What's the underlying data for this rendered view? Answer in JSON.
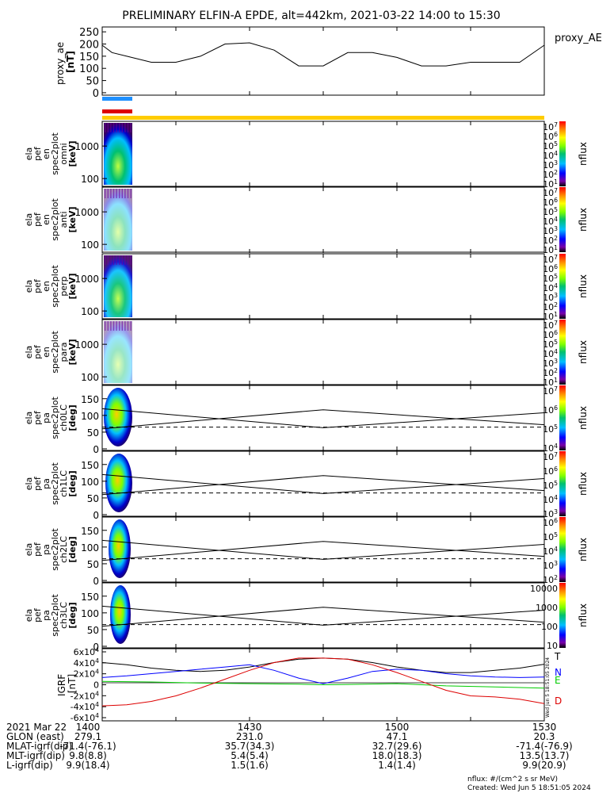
{
  "title": "PRELIMINARY ELFIN-A EPDE, alt=442km, 2021-03-22 14:00 to 15:30",
  "proxy_ae": {
    "ylabel": [
      "proxy_ae",
      "[nT]"
    ],
    "legend": "proxy_AE",
    "ticks": [
      "250",
      "200",
      "150",
      "100",
      "50",
      "0"
    ]
  },
  "spec_panels": [
    {
      "ylabel": [
        "ela",
        "pef",
        "en",
        "spec2plot",
        "omni",
        "[keV]"
      ],
      "yticks": [
        "1000",
        "100"
      ],
      "cb_label": "nflux",
      "cb_ticks": [
        "10^7",
        "10^6",
        "10^5",
        "10^4",
        "10^3",
        "10^2",
        "10^1"
      ]
    },
    {
      "ylabel": [
        "ela",
        "pef",
        "en",
        "spec2plot",
        "anti",
        "[keV]"
      ],
      "yticks": [
        "1000",
        "100"
      ],
      "cb_label": "nflux",
      "cb_ticks": [
        "10^7",
        "10^6",
        "10^5",
        "10^4",
        "10^3",
        "10^2",
        "10^1"
      ]
    },
    {
      "ylabel": [
        "ela",
        "pef",
        "en",
        "spec2plot",
        "perp",
        "[keV]"
      ],
      "yticks": [
        "1000",
        "100"
      ],
      "cb_label": "nflux",
      "cb_ticks": [
        "10^7",
        "10^6",
        "10^5",
        "10^4",
        "10^3",
        "10^2",
        "10^1"
      ]
    },
    {
      "ylabel": [
        "ela",
        "pef",
        "en",
        "spec2plot",
        "para",
        "[keV]"
      ],
      "yticks": [
        "1000",
        "100"
      ],
      "cb_label": "nflux",
      "cb_ticks": [
        "10^7",
        "10^6",
        "10^5",
        "10^4",
        "10^3",
        "10^2",
        "10^1"
      ]
    }
  ],
  "pa_panels": [
    {
      "ylabel": [
        "ela",
        "pef",
        "pa",
        "spec2plot",
        "ch0LC",
        "[deg]"
      ],
      "yticks": [
        "150",
        "100",
        "50",
        "0"
      ],
      "cb_label": "nflux",
      "cb_ticks": [
        "10^7",
        "10^6",
        "10^5",
        "10^4"
      ]
    },
    {
      "ylabel": [
        "ela",
        "pef",
        "pa",
        "spec2plot",
        "ch1LC",
        "[deg]"
      ],
      "yticks": [
        "150",
        "100",
        "50",
        "0"
      ],
      "cb_label": "nflux",
      "cb_ticks": [
        "10^7",
        "10^6",
        "10^5",
        "10^4",
        "10^3"
      ]
    },
    {
      "ylabel": [
        "ela",
        "pef",
        "pa",
        "spec2plot",
        "ch2LC",
        "[deg]"
      ],
      "yticks": [
        "150",
        "100",
        "50",
        "0"
      ],
      "cb_label": "nflux",
      "cb_ticks": [
        "10^6",
        "10^5",
        "10^4",
        "10^3",
        "10^2"
      ]
    },
    {
      "ylabel": [
        "ela",
        "pef",
        "pa",
        "spec2plot",
        "ch3LC",
        "[deg]"
      ],
      "yticks": [
        "150",
        "100",
        "50",
        "0"
      ],
      "cb_label": "nflux",
      "cb_ticks": [
        "10000",
        "1000",
        "100",
        "10"
      ]
    }
  ],
  "igrf": {
    "ylabel": [
      "IGRF",
      "[nT]"
    ],
    "ticks": [
      "6x10^4",
      "4x10^4",
      "2x10^4",
      "0",
      "-2x10^4",
      "-4x10^4",
      "-6x10^4"
    ],
    "legend": [
      {
        "label": "T",
        "color": "#000000"
      },
      {
        "label": "N",
        "color": "#0000ff"
      },
      {
        "label": "E",
        "color": "#00cc00"
      },
      {
        "label": "D",
        "color": "#dd0000"
      }
    ],
    "side_text": "Wed Jun  5 18:51:05 2024"
  },
  "footer": {
    "rows": [
      {
        "label": "2021 Mar 22",
        "values": [
          "1400",
          "1430",
          "1500",
          "1530"
        ]
      },
      {
        "label": "GLON (east)",
        "values": [
          "279.1",
          "231.0",
          "47.1",
          "20.3"
        ]
      },
      {
        "label": "MLAT-igrf(dip)",
        "values": [
          "-71.4(-76.1)",
          "35.7(34.3)",
          "32.7(29.6)",
          "-71.4(-76.9)"
        ]
      },
      {
        "label": "MLT-igrf(dip)",
        "values": [
          "9.8(8.8)",
          "5.4(5.4)",
          "18.0(18.3)",
          "13.5(13.7)"
        ]
      },
      {
        "label": "L-igrf(dip)",
        "values": [
          "9.9(18.4)",
          "1.5(1.6)",
          "1.4(1.4)",
          "9.9(20.9)"
        ]
      }
    ],
    "units_note": "nflux: #/(cm^2 s sr MeV)",
    "created": "Created: Wed Jun  5 18:51:05 2024"
  },
  "chart_data": {
    "type": "line",
    "x_range": [
      "14:00",
      "15:30"
    ],
    "x_ticks": [
      "1400",
      "1430",
      "1500",
      "1530"
    ],
    "series": [
      {
        "name": "proxy_AE",
        "x_minutes": [
          0,
          2,
          5,
          10,
          15,
          20,
          25,
          30,
          35,
          40,
          45,
          50,
          55,
          60,
          65,
          70,
          75,
          80,
          85,
          90
        ],
        "values": [
          195,
          165,
          150,
          125,
          125,
          150,
          200,
          205,
          175,
          110,
          110,
          165,
          165,
          145,
          110,
          110,
          125,
          125,
          125,
          195
        ]
      },
      {
        "name": "T",
        "x_minutes": [
          0,
          5,
          10,
          15,
          20,
          25,
          30,
          35,
          40,
          45,
          50,
          55,
          60,
          65,
          70,
          75,
          80,
          85,
          90
        ],
        "values": [
          40000,
          36000,
          30000,
          26000,
          24000,
          26000,
          32000,
          40000,
          46000,
          48000,
          46000,
          40000,
          32000,
          26000,
          22000,
          22000,
          26000,
          30000,
          37000
        ]
      },
      {
        "name": "N",
        "x_minutes": [
          0,
          5,
          10,
          15,
          20,
          25,
          30,
          35,
          40,
          45,
          50,
          55,
          60,
          65,
          70,
          75,
          80,
          85,
          90
        ],
        "values": [
          13000,
          16000,
          20000,
          24000,
          28000,
          32000,
          36000,
          26000,
          12000,
          2000,
          12000,
          24000,
          28000,
          26000,
          20000,
          16000,
          14000,
          13000,
          14000
        ]
      },
      {
        "name": "E",
        "x_minutes": [
          0,
          10,
          20,
          30,
          40,
          45,
          50,
          60,
          70,
          80,
          90
        ],
        "values": [
          6000,
          5000,
          3000,
          2000,
          1000,
          0,
          500,
          2000,
          -2000,
          -4000,
          -6000
        ]
      },
      {
        "name": "D",
        "x_minutes": [
          0,
          5,
          10,
          15,
          20,
          25,
          30,
          35,
          40,
          45,
          50,
          55,
          60,
          65,
          70,
          75,
          80,
          85,
          90
        ],
        "values": [
          -38000,
          -36000,
          -30000,
          -20000,
          -6000,
          10000,
          26000,
          40000,
          48000,
          48000,
          46000,
          36000,
          22000,
          6000,
          -10000,
          -20000,
          -22000,
          -26000,
          -34000
        ]
      }
    ],
    "colors": {
      "T": "#000000",
      "N": "#0000ff",
      "E": "#00cc00",
      "D": "#dd0000",
      "proxy_AE": "#000000"
    },
    "status_bars": [
      {
        "color": "#1e90ff"
      },
      {
        "color": "#dd0000"
      },
      {
        "color": "#ffcc00"
      }
    ]
  }
}
